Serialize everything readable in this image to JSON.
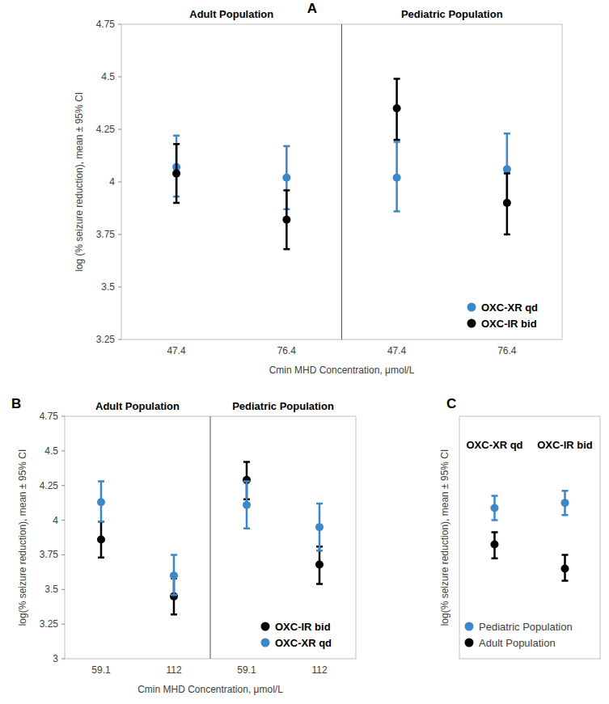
{
  "chart_data": [
    {
      "type": "dot",
      "title": "A",
      "x_label": "Cmin MHD Concentration, μmol/L",
      "y_label": "log (% seizure reduction), mean ± 95% CI",
      "groups": [
        "Adult Population",
        "Pediatric Population"
      ],
      "categories": [
        "47.4",
        "76.4",
        "47.4",
        "76.4"
      ],
      "series": [
        {
          "name": "OXC-XR qd",
          "color": "#3a87c9",
          "values": [
            4.07,
            4.02,
            4.02,
            4.06
          ],
          "lower": [
            3.93,
            3.87,
            3.86,
            3.89
          ],
          "upper": [
            4.22,
            4.17,
            4.19,
            4.23
          ]
        },
        {
          "name": "OXC-IR bid",
          "color": "#000000",
          "values": [
            4.04,
            3.82,
            4.35,
            3.9
          ],
          "lower": [
            3.9,
            3.68,
            4.2,
            3.75
          ],
          "upper": [
            4.18,
            3.96,
            4.49,
            4.04
          ]
        }
      ],
      "ylim": [
        3.25,
        4.75
      ],
      "yticks": [
        3.25,
        3.5,
        3.75,
        4,
        4.25,
        4.5,
        4.75
      ],
      "legend": "bottom-right",
      "grid": false
    },
    {
      "type": "dot",
      "title": "B",
      "x_label": "Cmin MHD Concentration, μmol/L",
      "y_label": "log(% seizure reduction), mean ± 95% CI",
      "groups": [
        "Adult Population",
        "Pediatric Population"
      ],
      "categories": [
        "59.1",
        "112",
        "59.1",
        "112"
      ],
      "series": [
        {
          "name": "OXC-IR bid",
          "color": "#000000",
          "values": [
            3.86,
            3.45,
            4.29,
            3.68
          ],
          "lower": [
            3.73,
            3.32,
            4.15,
            3.54
          ],
          "upper": [
            3.99,
            3.58,
            4.42,
            3.81
          ]
        },
        {
          "name": "OXC-XR qd",
          "color": "#3a87c9",
          "values": [
            4.13,
            3.6,
            4.11,
            3.95
          ],
          "lower": [
            3.99,
            3.46,
            3.94,
            3.78
          ],
          "upper": [
            4.28,
            3.75,
            4.28,
            4.12
          ]
        }
      ],
      "ylim": [
        3,
        4.75
      ],
      "yticks": [
        3,
        3.25,
        3.5,
        3.75,
        4,
        4.25,
        4.5,
        4.75
      ],
      "legend": "bottom-right",
      "grid": false
    },
    {
      "type": "dot",
      "title": "C",
      "y_label": "log(% seizure reduction), mean ± 95% CI",
      "categories": [
        "OXC-XR qd",
        "OXC-IR bid"
      ],
      "series": [
        {
          "name": "Pediatric Population",
          "color": "#3a87c9",
          "values": [
            4.07,
            4.1
          ],
          "lower": [
            4.0,
            4.03
          ],
          "upper": [
            4.14,
            4.17
          ]
        },
        {
          "name": "Adult Population",
          "color": "#000000",
          "values": [
            3.86,
            3.72
          ],
          "lower": [
            3.78,
            3.65
          ],
          "upper": [
            3.93,
            3.8
          ]
        }
      ],
      "ylim": [
        3.2,
        4.6
      ],
      "tick_labels": false,
      "legend": "bottom-right",
      "grid": false
    }
  ]
}
